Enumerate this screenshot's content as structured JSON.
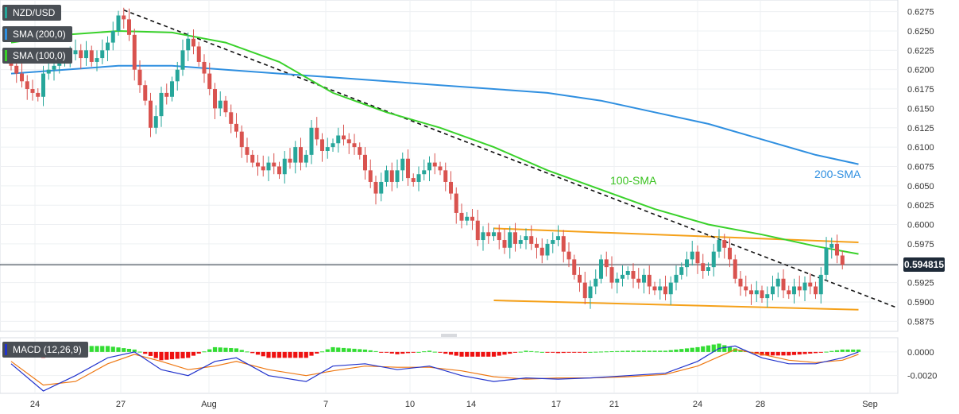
{
  "header": {
    "pair": "NZD/USD",
    "sma200_label": "SMA (200,0)",
    "sma100_label": "SMA (100,0)",
    "macd_label": "MACD (12,26,9)",
    "current_price": "0.594815"
  },
  "annotations": {
    "sma100": "100-SMA",
    "sma200": "200-SMA"
  },
  "colors": {
    "up": "#26a69a",
    "down": "#d9534f",
    "sma100": "#39d12a",
    "sma200": "#2f8fe0",
    "channel": "#f5a11a",
    "trendline": "#111111",
    "macd_line": "#2233cc",
    "signal_line": "#ee7711",
    "hist_pos": "#33dd33",
    "hist_neg": "#ee1111"
  },
  "chart_data": [
    {
      "type": "candlestick",
      "x_tick_labels": [
        "24",
        "27",
        "Aug",
        "7",
        "10",
        "14",
        "17",
        "21",
        "24",
        "28",
        "Sep"
      ],
      "y_tick_labels": [
        "0.6275",
        "0.6250",
        "0.6225",
        "0.6200",
        "0.6175",
        "0.6150",
        "0.6125",
        "0.6100",
        "0.6075",
        "0.6050",
        "0.6025",
        "0.6000",
        "0.5975",
        "0.5950",
        "0.5925",
        "0.5900",
        "0.5875"
      ],
      "ylim": [
        0.5862,
        0.629
      ],
      "grid": true,
      "timeframe": "4H",
      "closes": [
        0.6205,
        0.6195,
        0.6185,
        0.6175,
        0.617,
        0.6165,
        0.6195,
        0.62,
        0.6205,
        0.621,
        0.6215,
        0.622,
        0.6225,
        0.6215,
        0.6225,
        0.621,
        0.6215,
        0.6225,
        0.6235,
        0.625,
        0.627,
        0.6265,
        0.6245,
        0.62,
        0.618,
        0.616,
        0.6125,
        0.614,
        0.617,
        0.6165,
        0.6185,
        0.62,
        0.6225,
        0.624,
        0.623,
        0.621,
        0.6195,
        0.6175,
        0.615,
        0.616,
        0.6145,
        0.613,
        0.612,
        0.61,
        0.609,
        0.608,
        0.6075,
        0.607,
        0.608,
        0.6075,
        0.6065,
        0.6085,
        0.608,
        0.61,
        0.608,
        0.609,
        0.6125,
        0.611,
        0.6095,
        0.61,
        0.6105,
        0.6115,
        0.611,
        0.6105,
        0.61,
        0.609,
        0.607,
        0.6055,
        0.604,
        0.6055,
        0.607,
        0.6055,
        0.607,
        0.6085,
        0.606,
        0.6055,
        0.6065,
        0.607,
        0.608,
        0.6075,
        0.607,
        0.6055,
        0.604,
        0.6015,
        0.6005,
        0.601,
        0.6005,
        0.598,
        0.599,
        0.5985,
        0.599,
        0.598,
        0.597,
        0.599,
        0.5975,
        0.598,
        0.5985,
        0.5975,
        0.597,
        0.596,
        0.5975,
        0.598,
        0.5985,
        0.5965,
        0.5955,
        0.5935,
        0.5925,
        0.5905,
        0.592,
        0.593,
        0.5955,
        0.5945,
        0.5925,
        0.593,
        0.5935,
        0.594,
        0.593,
        0.5925,
        0.5935,
        0.592,
        0.5915,
        0.592,
        0.591,
        0.5925,
        0.5935,
        0.5945,
        0.5955,
        0.5965,
        0.595,
        0.594,
        0.5945,
        0.5965,
        0.598,
        0.597,
        0.5955,
        0.593,
        0.592,
        0.5915,
        0.591,
        0.5915,
        0.5905,
        0.591,
        0.592,
        0.593,
        0.5915,
        0.591,
        0.592,
        0.5915,
        0.5925,
        0.592,
        0.591,
        0.5935,
        0.597,
        0.5975,
        0.596,
        0.5948
      ],
      "series": [
        {
          "name": "100-SMA",
          "points": [
            [
              0,
              0.6235
            ],
            [
              10,
              0.6245
            ],
            [
              20,
              0.625
            ],
            [
              30,
              0.6248
            ],
            [
              40,
              0.6235
            ],
            [
              50,
              0.621
            ],
            [
              60,
              0.617
            ],
            [
              70,
              0.6145
            ],
            [
              80,
              0.6125
            ],
            [
              90,
              0.61
            ],
            [
              100,
              0.607
            ],
            [
              110,
              0.6045
            ],
            [
              120,
              0.602
            ],
            [
              130,
              0.6
            ],
            [
              140,
              0.5987
            ],
            [
              150,
              0.5972
            ],
            [
              158,
              0.5962
            ]
          ]
        },
        {
          "name": "200-SMA",
          "points": [
            [
              0,
              0.6195
            ],
            [
              10,
              0.62
            ],
            [
              20,
              0.6205
            ],
            [
              30,
              0.6205
            ],
            [
              40,
              0.62
            ],
            [
              50,
              0.6195
            ],
            [
              60,
              0.619
            ],
            [
              70,
              0.6185
            ],
            [
              80,
              0.618
            ],
            [
              90,
              0.6175
            ],
            [
              100,
              0.617
            ],
            [
              110,
              0.616
            ],
            [
              120,
              0.6145
            ],
            [
              130,
              0.613
            ],
            [
              140,
              0.611
            ],
            [
              150,
              0.609
            ],
            [
              158,
              0.6078
            ]
          ]
        }
      ],
      "trendlines": [
        {
          "from": [
            21,
            0.6277
          ],
          "to": [
            165,
            0.5893
          ]
        },
        {
          "from": [
            90,
            0.5995
          ],
          "to": [
            158,
            0.5977
          ]
        },
        {
          "from": [
            90,
            0.5902
          ],
          "to": [
            158,
            0.589
          ]
        }
      ]
    },
    {
      "type": "bar+line",
      "title": "MACD (12,26,9)",
      "y_tick_labels": [
        "0.0000",
        "-0.0020"
      ],
      "ylim": [
        -0.0035,
        0.0012
      ],
      "series": [
        {
          "name": "MACD",
          "points": [
            [
              0,
              -0.001
            ],
            [
              6,
              -0.0033
            ],
            [
              12,
              -0.002
            ],
            [
              18,
              -0.0005
            ],
            [
              23,
              0.0
            ],
            [
              28,
              -0.0015
            ],
            [
              33,
              -0.002
            ],
            [
              38,
              -0.0008
            ],
            [
              42,
              -0.0005
            ],
            [
              48,
              -0.002
            ],
            [
              55,
              -0.0025
            ],
            [
              60,
              -0.0012
            ],
            [
              66,
              -0.001
            ],
            [
              72,
              -0.0015
            ],
            [
              78,
              -0.0012
            ],
            [
              84,
              -0.002
            ],
            [
              90,
              -0.0025
            ],
            [
              96,
              -0.0022
            ],
            [
              102,
              -0.0023
            ],
            [
              108,
              -0.0022
            ],
            [
              115,
              -0.002
            ],
            [
              122,
              -0.0018
            ],
            [
              128,
              -0.0008
            ],
            [
              132,
              0.0003
            ],
            [
              135,
              0.0005
            ],
            [
              140,
              -0.0005
            ],
            [
              145,
              -0.001
            ],
            [
              150,
              -0.001
            ],
            [
              155,
              -0.0005
            ],
            [
              158,
              0.0
            ]
          ]
        },
        {
          "name": "Signal",
          "points": [
            [
              0,
              -0.0008
            ],
            [
              6,
              -0.0028
            ],
            [
              12,
              -0.0025
            ],
            [
              18,
              -0.001
            ],
            [
              23,
              -0.0002
            ],
            [
              28,
              -0.0008
            ],
            [
              33,
              -0.0015
            ],
            [
              38,
              -0.0012
            ],
            [
              42,
              -0.0008
            ],
            [
              48,
              -0.0015
            ],
            [
              55,
              -0.002
            ],
            [
              60,
              -0.0016
            ],
            [
              66,
              -0.0012
            ],
            [
              72,
              -0.0013
            ],
            [
              78,
              -0.0013
            ],
            [
              84,
              -0.0016
            ],
            [
              90,
              -0.0021
            ],
            [
              96,
              -0.0023
            ],
            [
              102,
              -0.0022
            ],
            [
              108,
              -0.0022
            ],
            [
              115,
              -0.0021
            ],
            [
              122,
              -0.0019
            ],
            [
              128,
              -0.0012
            ],
            [
              132,
              -0.0004
            ],
            [
              135,
              0.0002
            ],
            [
              140,
              -0.0002
            ],
            [
              145,
              -0.0007
            ],
            [
              150,
              -0.0009
            ],
            [
              155,
              -0.0007
            ],
            [
              158,
              -0.0002
            ]
          ]
        }
      ]
    }
  ]
}
